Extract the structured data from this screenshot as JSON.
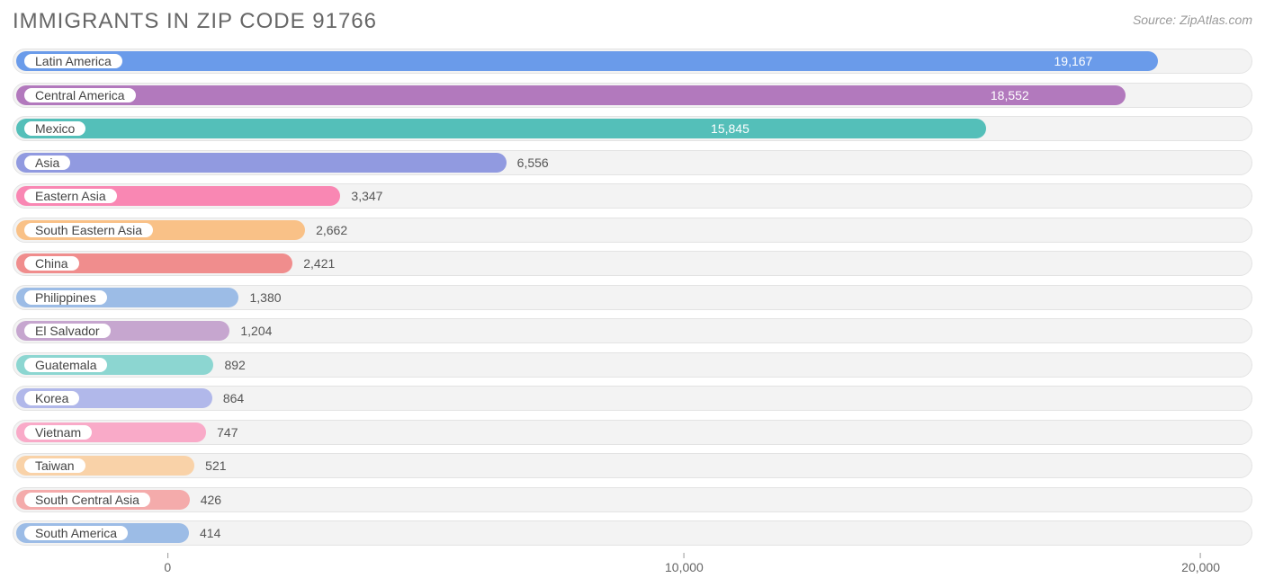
{
  "title": "IMMIGRANTS IN ZIP CODE 91766",
  "source": "Source: ZipAtlas.com",
  "chart": {
    "type": "bar-horizontal",
    "background_color": "#ffffff",
    "track_bg": "#f3f3f3",
    "track_border": "#e3e3e3",
    "label_color": "#444444",
    "value_outside_color": "#555555",
    "value_inside_color": "#ffffff",
    "title_fontsize": 24,
    "title_color": "#666666",
    "source_fontsize": 14,
    "source_color": "#999999",
    "xlim": [
      -3000,
      21000
    ],
    "ticks": [
      {
        "value": 0,
        "label": "0"
      },
      {
        "value": 10000,
        "label": "10,000"
      },
      {
        "value": 20000,
        "label": "20,000"
      }
    ],
    "series": [
      {
        "label": "Latin America",
        "value": 19167,
        "display": "19,167",
        "color": "#6a9bea",
        "inside": true
      },
      {
        "label": "Central America",
        "value": 18552,
        "display": "18,552",
        "color": "#b279bd",
        "inside": true
      },
      {
        "label": "Mexico",
        "value": 15845,
        "display": "15,845",
        "color": "#54bfb9",
        "inside": true
      },
      {
        "label": "Asia",
        "value": 6556,
        "display": "6,556",
        "color": "#919ae0",
        "inside": false
      },
      {
        "label": "Eastern Asia",
        "value": 3347,
        "display": "3,347",
        "color": "#f987b3",
        "inside": false
      },
      {
        "label": "South Eastern Asia",
        "value": 2662,
        "display": "2,662",
        "color": "#f9c187",
        "inside": false
      },
      {
        "label": "China",
        "value": 2421,
        "display": "2,421",
        "color": "#f08d8d",
        "inside": false
      },
      {
        "label": "Philippines",
        "value": 1380,
        "display": "1,380",
        "color": "#9cbce6",
        "inside": false
      },
      {
        "label": "El Salvador",
        "value": 1204,
        "display": "1,204",
        "color": "#c6a6cf",
        "inside": false
      },
      {
        "label": "Guatemala",
        "value": 892,
        "display": "892",
        "color": "#8cd6d1",
        "inside": false
      },
      {
        "label": "Korea",
        "value": 864,
        "display": "864",
        "color": "#b1b8ea",
        "inside": false
      },
      {
        "label": "Vietnam",
        "value": 747,
        "display": "747",
        "color": "#f9aac8",
        "inside": false
      },
      {
        "label": "Taiwan",
        "value": 521,
        "display": "521",
        "color": "#f9d2a8",
        "inside": false
      },
      {
        "label": "South Central Asia",
        "value": 426,
        "display": "426",
        "color": "#f4abab",
        "inside": false
      },
      {
        "label": "South America",
        "value": 414,
        "display": "414",
        "color": "#9cbce6",
        "inside": false
      }
    ]
  }
}
